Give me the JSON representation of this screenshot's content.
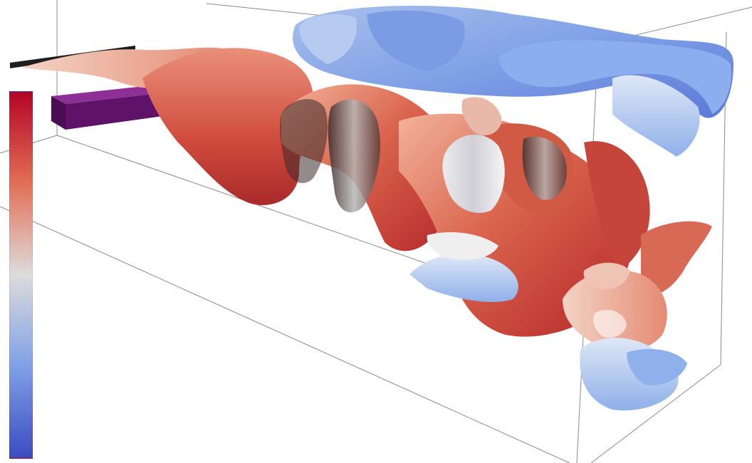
{
  "scene": {
    "kind": "3d-flow-visualization",
    "background": "#ffffff",
    "box_line_color": "#8a8a8a",
    "obstacles": [
      {
        "name": "flat-plate",
        "color": "#1e1e1e"
      },
      {
        "name": "block",
        "color": "#5a0f63"
      }
    ],
    "surface_colors": {
      "warm_dark": "#b4262a",
      "warm": "#d9634c",
      "warm_light": "#f2b39b",
      "neutral": "#dcdcdc",
      "cool_light": "#b9cdec",
      "cool": "#7fa0e6",
      "cool_dark": "#3a4fc4"
    }
  },
  "colorbar": {
    "colormap": "coolwarm",
    "top_color": "#b40426",
    "middle_color": "#dddcdc",
    "bottom_color": "#3b4cc0",
    "tick_labels": []
  }
}
